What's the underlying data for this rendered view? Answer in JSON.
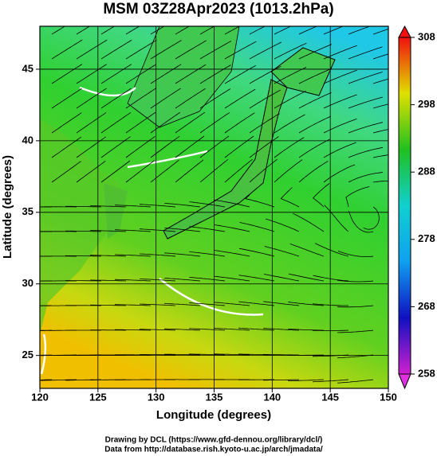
{
  "chart_data": {
    "type": "map",
    "title": "MSM 03Z28Apr2023 (1013.2hPa)",
    "xlabel": "Longitude (degrees)",
    "ylabel": "Latitude  (degrees)",
    "xlim": [
      120,
      150
    ],
    "xticks": [
      120,
      125,
      130,
      135,
      140,
      145,
      150
    ],
    "ylim": [
      22.7,
      48
    ],
    "yticks": [
      25,
      30,
      35,
      40,
      45
    ],
    "grid": true,
    "colorbar": {
      "range": [
        258,
        308
      ],
      "ticks": [
        258,
        268,
        278,
        288,
        298,
        308
      ],
      "colors": [
        "#d020d0",
        "#1010c0",
        "#10a0f0",
        "#10d0d0",
        "#20c020",
        "#e0e000",
        "#f01010"
      ]
    },
    "credits": [
      "Drawing by DCL (https://www.gfd-dennou.org/library/dcl/)",
      "Data from http://database.rish.kyoto-u.ac.jp/arch/jmadata/"
    ]
  }
}
